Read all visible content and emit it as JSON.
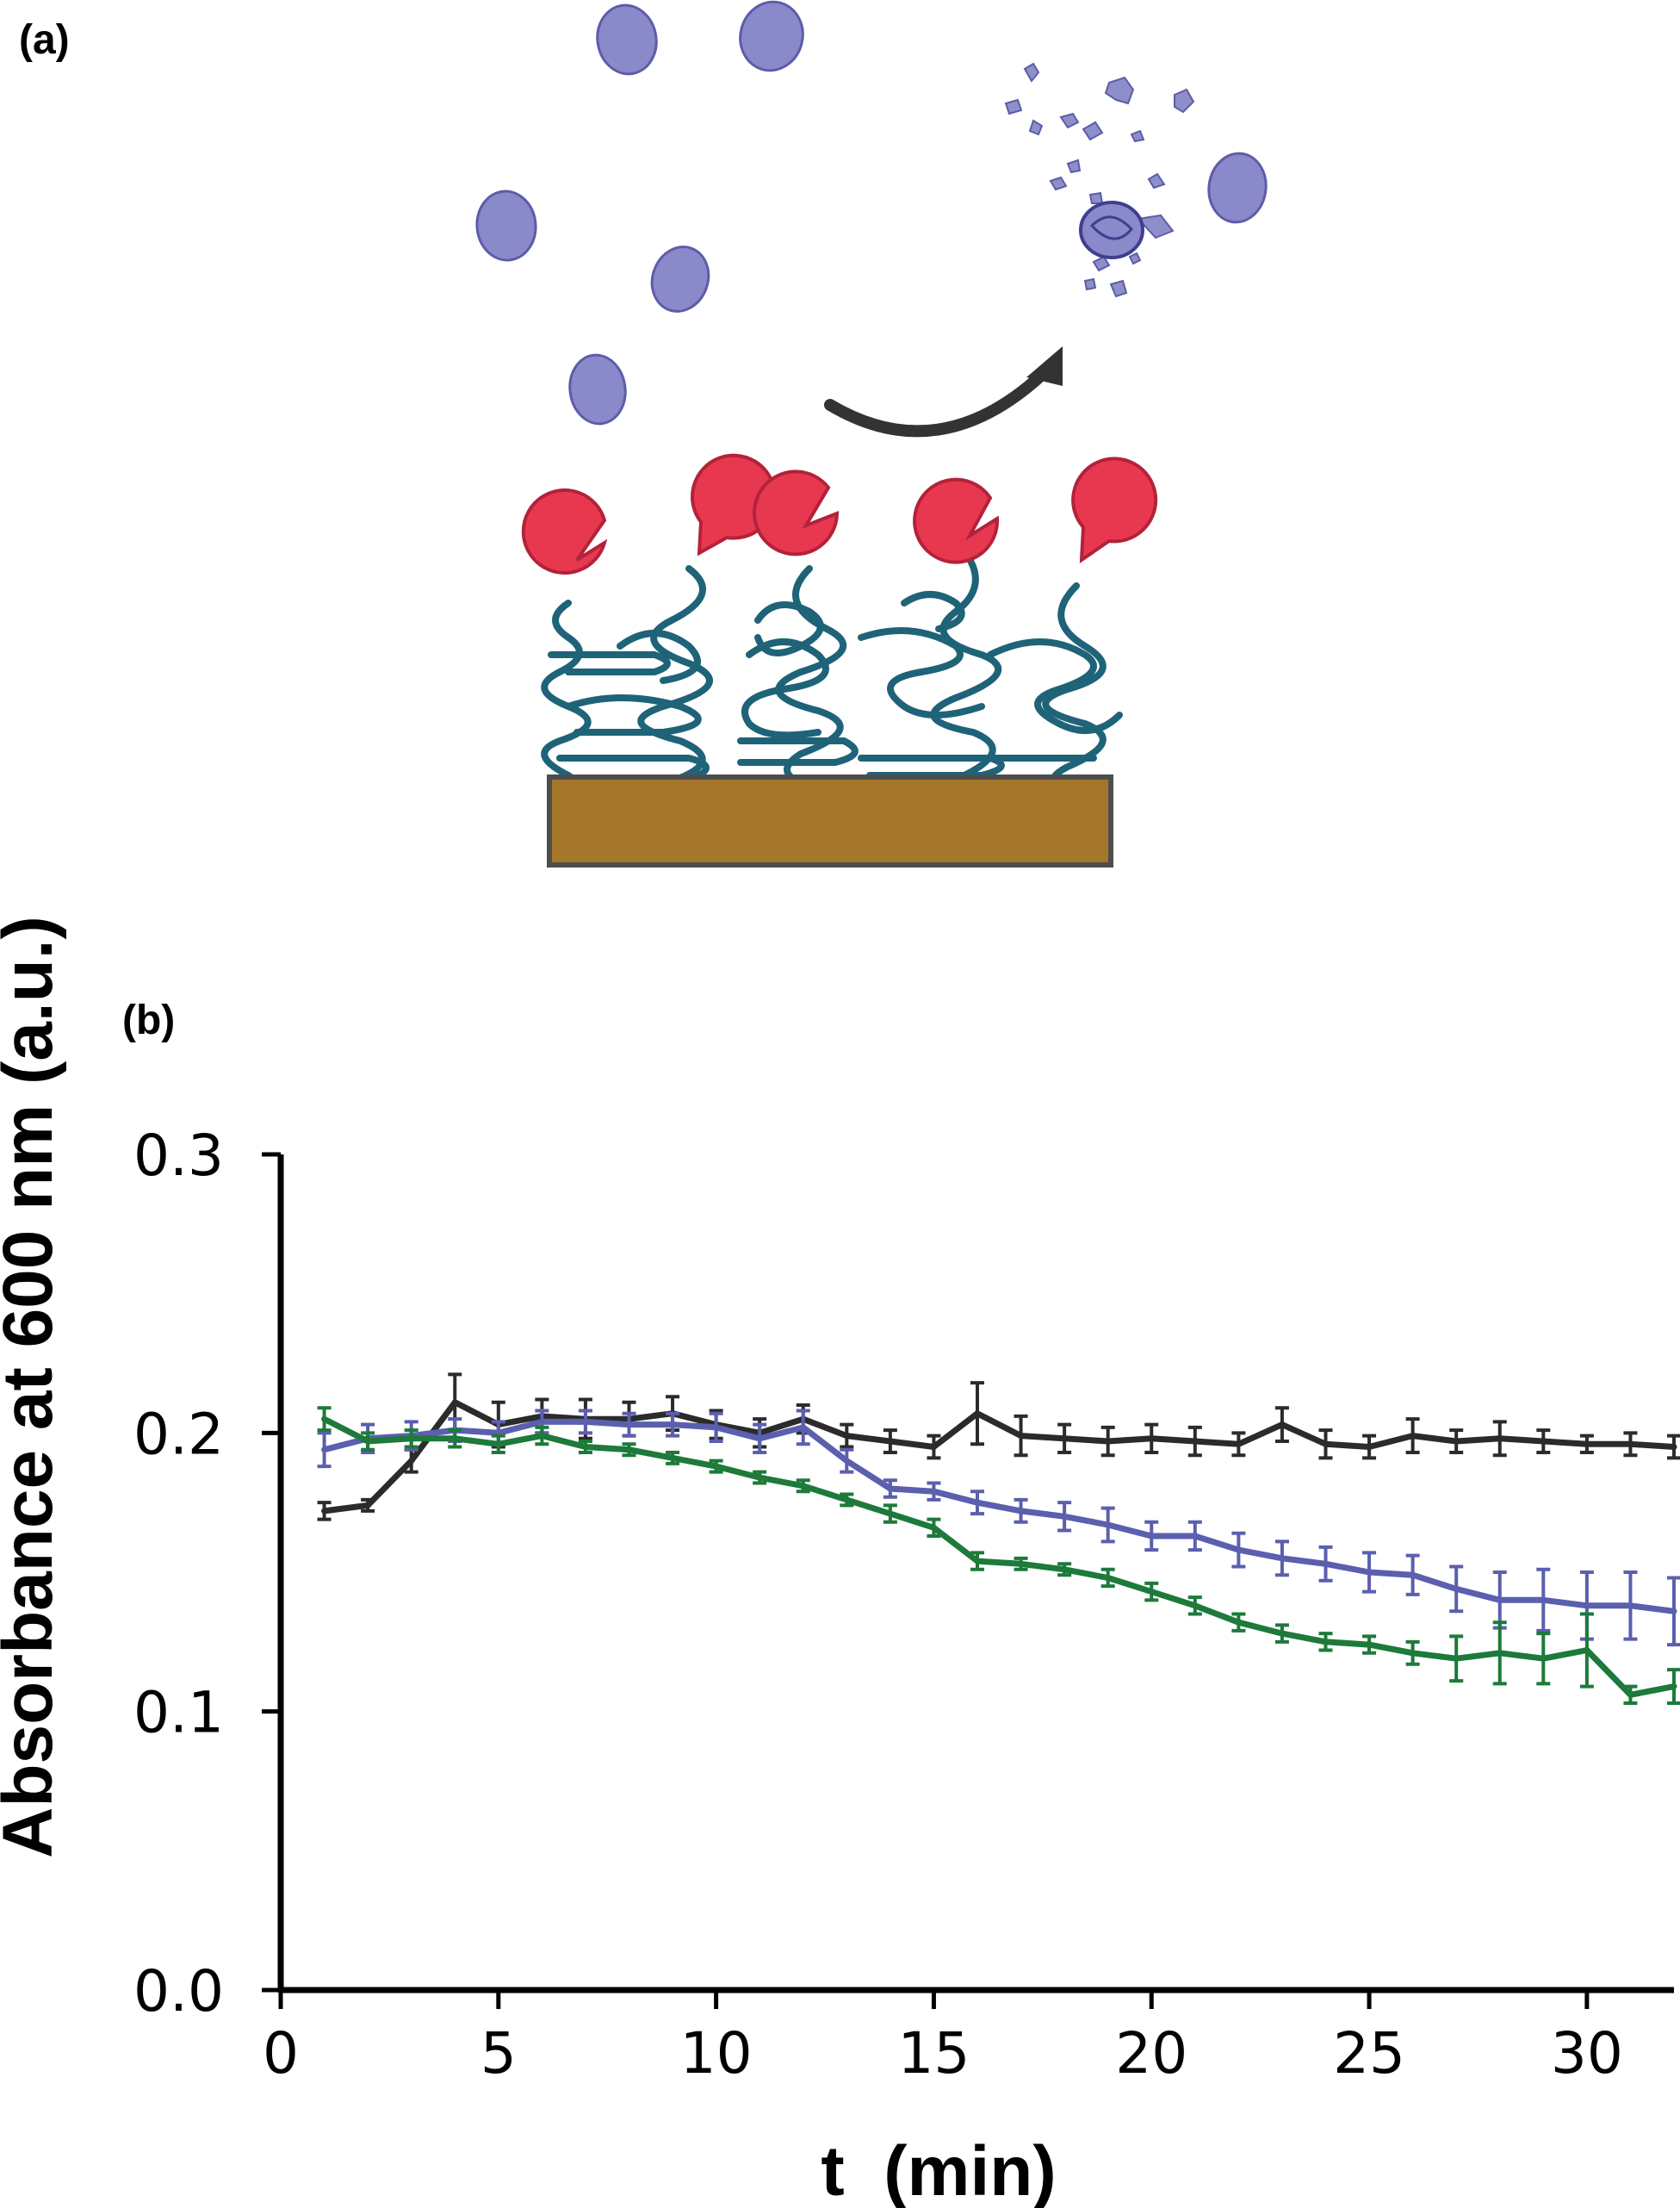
{
  "figure": {
    "panel_a_label": "(a)",
    "panel_b_label": "(b)"
  },
  "schematic": {
    "cell_color": "#8a89c9",
    "fragment_color": "#7f82c4",
    "enzyme_color": "#e8384f",
    "polymer_color": "#1f6378",
    "substrate_color": "#a5772a",
    "arrow_color": "#333333",
    "icons": [
      "bacterium-cell-icon",
      "lysed-cell-fragments-icon",
      "enzyme-pacman-icon",
      "polymer-brush-icon",
      "substrate-slab-icon",
      "curved-arrow-icon"
    ]
  },
  "chart_data": {
    "type": "line",
    "xlabel": "t  (min)",
    "ylabel": "Absorbance at 600 nm (a.u.)",
    "xlim": [
      0,
      32
    ],
    "ylim": [
      0,
      0.3
    ],
    "x_ticks": [
      0,
      5,
      10,
      15,
      20,
      25,
      30
    ],
    "x_tick_labels": [
      "0",
      "5",
      "10",
      "15",
      "20",
      "25",
      "30"
    ],
    "y_ticks": [
      0.0,
      0.1,
      0.2,
      0.3
    ],
    "y_tick_labels": [
      "0.0",
      "0.1",
      "0.2",
      "0.3"
    ],
    "grid": false,
    "legend": "none",
    "x": [
      1,
      2,
      3,
      4,
      5,
      6,
      7,
      8,
      9,
      10,
      11,
      12,
      13,
      14,
      15,
      16,
      17,
      18,
      19,
      20,
      21,
      22,
      23,
      24,
      25,
      26,
      27,
      28,
      29,
      30,
      31,
      32
    ],
    "series": [
      {
        "color": "#2b2b2b",
        "values": [
          0.172,
          0.174,
          0.19,
          0.211,
          0.203,
          0.206,
          0.205,
          0.205,
          0.207,
          0.203,
          0.2,
          0.205,
          0.199,
          0.197,
          0.195,
          0.207,
          0.199,
          0.198,
          0.197,
          0.198,
          0.197,
          0.196,
          0.203,
          0.196,
          0.195,
          0.199,
          0.197,
          0.198,
          0.197,
          0.196,
          0.196,
          0.195
        ],
        "errors": [
          0.003,
          0.002,
          0.004,
          0.01,
          0.008,
          0.006,
          0.007,
          0.006,
          0.006,
          0.005,
          0.005,
          0.005,
          0.004,
          0.004,
          0.004,
          0.011,
          0.007,
          0.005,
          0.005,
          0.005,
          0.005,
          0.004,
          0.006,
          0.005,
          0.004,
          0.006,
          0.004,
          0.006,
          0.004,
          0.003,
          0.004,
          0.004
        ]
      },
      {
        "color": "#5b5fae",
        "values": [
          0.194,
          0.198,
          0.199,
          0.201,
          0.2,
          0.204,
          0.204,
          0.203,
          0.203,
          0.202,
          0.198,
          0.202,
          0.19,
          0.18,
          0.179,
          0.175,
          0.172,
          0.17,
          0.167,
          0.163,
          0.163,
          0.158,
          0.155,
          0.153,
          0.15,
          0.149,
          0.144,
          0.14,
          0.14,
          0.138,
          0.138,
          0.136
        ],
        "errors": [
          0.006,
          0.005,
          0.005,
          0.004,
          0.004,
          0.004,
          0.004,
          0.004,
          0.004,
          0.005,
          0.005,
          0.006,
          0.004,
          0.003,
          0.003,
          0.004,
          0.004,
          0.005,
          0.006,
          0.005,
          0.005,
          0.006,
          0.006,
          0.006,
          0.007,
          0.007,
          0.008,
          0.01,
          0.011,
          0.012,
          0.012,
          0.012
        ]
      },
      {
        "color": "#1d7a3a",
        "values": [
          0.205,
          0.197,
          0.198,
          0.198,
          0.196,
          0.199,
          0.195,
          0.194,
          0.191,
          0.188,
          0.184,
          0.181,
          0.176,
          0.171,
          0.166,
          0.154,
          0.153,
          0.151,
          0.148,
          0.143,
          0.138,
          0.132,
          0.128,
          0.125,
          0.124,
          0.121,
          0.119,
          0.121,
          0.119,
          0.122,
          0.106,
          0.109
        ],
        "errors": [
          0.004,
          0.003,
          0.003,
          0.003,
          0.003,
          0.003,
          0.002,
          0.002,
          0.002,
          0.002,
          0.002,
          0.002,
          0.002,
          0.003,
          0.003,
          0.003,
          0.002,
          0.002,
          0.003,
          0.003,
          0.003,
          0.003,
          0.003,
          0.003,
          0.003,
          0.004,
          0.008,
          0.011,
          0.009,
          0.013,
          0.003,
          0.006
        ]
      }
    ]
  }
}
